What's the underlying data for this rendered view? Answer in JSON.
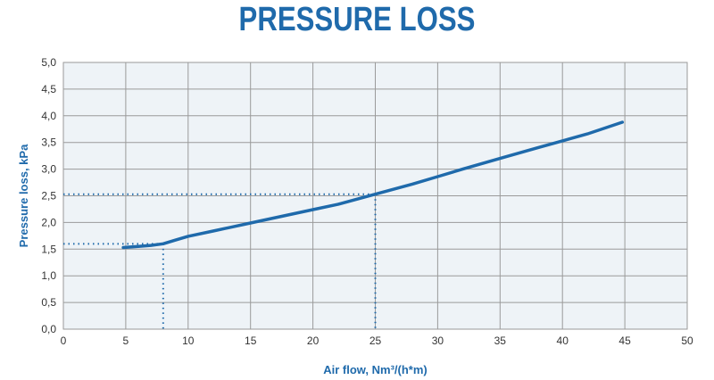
{
  "title": "PRESSURE LOSS",
  "colors": {
    "line": "#1f6aab",
    "grid": "#9a9a9a",
    "plot_bg": "#eef3f7",
    "title": "#1f6aab"
  },
  "chart_data": {
    "type": "line",
    "title": "PRESSURE LOSS",
    "xlabel": "Air flow, Nm³/(h*m)",
    "ylabel": "Pressure loss, kPa",
    "xlim": [
      0,
      50
    ],
    "ylim": [
      0,
      5
    ],
    "x_ticks": [
      "0",
      "5",
      "10",
      "15",
      "20",
      "25",
      "30",
      "35",
      "40",
      "45",
      "50"
    ],
    "y_ticks": [
      "0,0",
      "0,5",
      "1,0",
      "1,5",
      "2,0",
      "2,5",
      "3,0",
      "3,5",
      "4,0",
      "4,5",
      "5,0"
    ],
    "grid": true,
    "series": [
      {
        "x": [
          4.8,
          6,
          7,
          8,
          9,
          10,
          12,
          15,
          18,
          20,
          22,
          25,
          28,
          30,
          32,
          35,
          38,
          40,
          42,
          44.8
        ],
        "y": [
          1.53,
          1.55,
          1.57,
          1.6,
          1.67,
          1.74,
          1.84,
          1.99,
          2.14,
          2.24,
          2.34,
          2.53,
          2.72,
          2.86,
          3.0,
          3.2,
          3.4,
          3.53,
          3.66,
          3.88
        ]
      }
    ],
    "reference_lines": [
      {
        "x": 8,
        "y": 1.6
      },
      {
        "x": 25,
        "y": 2.53
      }
    ]
  }
}
